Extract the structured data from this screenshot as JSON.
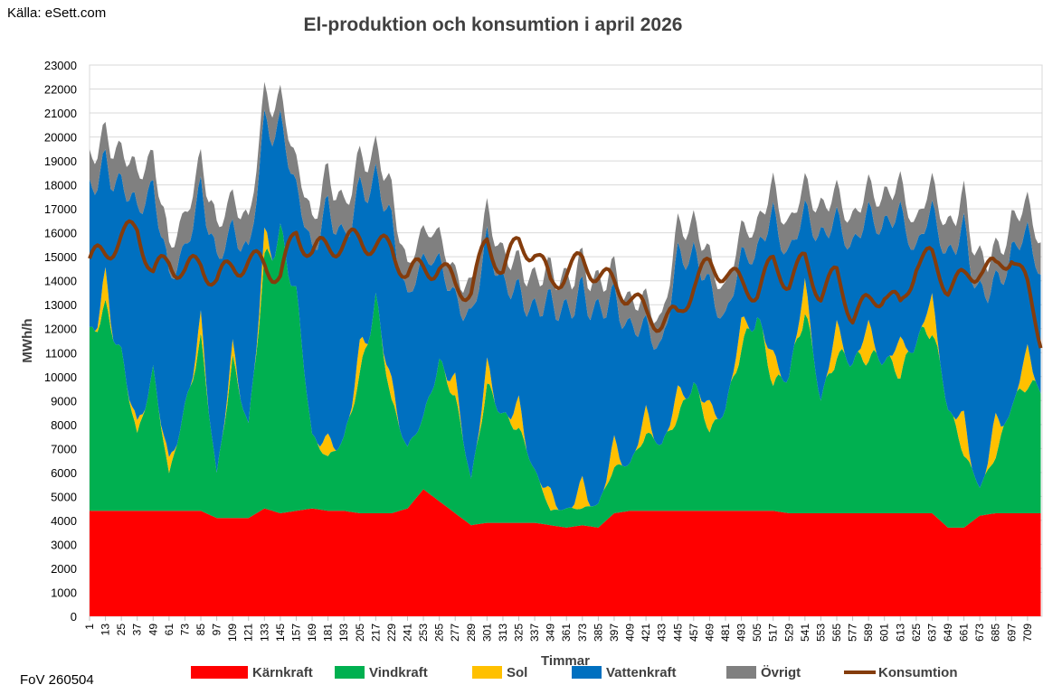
{
  "source_label": "Källa: eSett.com",
  "footer_label": "FoV 260504",
  "chart_data": {
    "type": "area",
    "title": "El-produktion och konsumtion i april 2026",
    "xlabel": "Timmar",
    "ylabel": "MWh/h",
    "ylim": [
      0,
      23000
    ],
    "y_ticks": [
      0,
      1000,
      2000,
      3000,
      4000,
      5000,
      6000,
      7000,
      8000,
      9000,
      10000,
      11000,
      12000,
      13000,
      14000,
      15000,
      16000,
      17000,
      18000,
      19000,
      20000,
      21000,
      22000,
      23000
    ],
    "x_range": [
      1,
      720
    ],
    "x_ticks": [
      1,
      13,
      25,
      37,
      49,
      61,
      73,
      85,
      97,
      109,
      121,
      133,
      145,
      157,
      169,
      181,
      193,
      205,
      217,
      229,
      241,
      253,
      265,
      277,
      289,
      301,
      313,
      325,
      337,
      349,
      361,
      373,
      385,
      397,
      409,
      421,
      433,
      445,
      457,
      469,
      481,
      493,
      505,
      517,
      529,
      541,
      553,
      565,
      577,
      589,
      601,
      613,
      625,
      637,
      649,
      661,
      673,
      685,
      697,
      709
    ],
    "grid": "horizontal",
    "legend_position": "bottom",
    "x": [
      1,
      13,
      25,
      37,
      49,
      61,
      73,
      85,
      97,
      109,
      121,
      133,
      145,
      157,
      169,
      181,
      193,
      205,
      217,
      229,
      241,
      253,
      265,
      277,
      289,
      301,
      313,
      325,
      337,
      349,
      361,
      373,
      385,
      397,
      409,
      421,
      433,
      445,
      457,
      469,
      481,
      493,
      505,
      517,
      529,
      541,
      553,
      565,
      577,
      589,
      601,
      613,
      625,
      637,
      649,
      661,
      673,
      685,
      697,
      709,
      720
    ],
    "series": [
      {
        "name": "Kärnkraft",
        "type": "area",
        "color": "#FF0000",
        "values": [
          4400,
          4400,
          4400,
          4400,
          4400,
          4400,
          4400,
          4400,
          4100,
          4100,
          4100,
          4500,
          4300,
          4400,
          4500,
          4400,
          4400,
          4300,
          4300,
          4300,
          4500,
          5300,
          4800,
          4300,
          3800,
          3900,
          3900,
          3900,
          3900,
          3800,
          3700,
          3800,
          3700,
          4300,
          4400,
          4400,
          4400,
          4400,
          4400,
          4400,
          4400,
          4400,
          4400,
          4400,
          4300,
          4300,
          4300,
          4300,
          4300,
          4300,
          4300,
          4300,
          4300,
          4300,
          3700,
          3700,
          4200,
          4300,
          4300,
          4300,
          4300
        ]
      },
      {
        "name": "Vindkraft",
        "type": "area",
        "color": "#00B050",
        "values": [
          7300,
          8400,
          6500,
          3100,
          5800,
          1500,
          4300,
          7100,
          1800,
          6500,
          3800,
          10200,
          11600,
          9000,
          3000,
          2200,
          3000,
          5700,
          8900,
          4600,
          2500,
          3000,
          5800,
          4800,
          1900,
          5700,
          4500,
          3900,
          2200,
          600,
          800,
          700,
          1000,
          1900,
          2000,
          3200,
          2800,
          3900,
          5400,
          3300,
          4300,
          6800,
          8200,
          5300,
          5800,
          8500,
          4800,
          6600,
          6400,
          6500,
          6500,
          5800,
          7300,
          7700,
          5100,
          3100,
          1200,
          2400,
          4600,
          5400,
          5200
        ]
      },
      {
        "name": "Sol",
        "type": "area",
        "color": "#FFC000",
        "values": [
          0,
          1000,
          0,
          400,
          0,
          500,
          0,
          700,
          0,
          500,
          0,
          800,
          0,
          0,
          0,
          700,
          0,
          1000,
          0,
          700,
          0,
          0,
          0,
          700,
          0,
          800,
          0,
          1000,
          0,
          700,
          0,
          1000,
          0,
          1000,
          0,
          900,
          0,
          1000,
          0,
          1000,
          0,
          1000,
          0,
          1100,
          0,
          1100,
          0,
          1200,
          0,
          1300,
          0,
          1300,
          0,
          1300,
          0,
          1400,
          0,
          1400,
          0,
          1400,
          0
        ]
      },
      {
        "name": "Vattenkraft",
        "type": "area",
        "color": "#0070C0",
        "values": [
          6300,
          5000,
          7300,
          9100,
          7800,
          7800,
          6700,
          5600,
          9200,
          5000,
          7400,
          4900,
          4700,
          4400,
          7800,
          9800,
          8500,
          6700,
          5300,
          6800,
          6300,
          6600,
          4300,
          3400,
          6900,
          5300,
          5700,
          4700,
          6900,
          8000,
          8400,
          8000,
          8200,
          6100,
          5800,
          3600,
          4200,
          5700,
          5600,
          5000,
          3900,
          2800,
          2900,
          5900,
          5200,
          3100,
          6900,
          4500,
          5000,
          4700,
          5800,
          5400,
          4000,
          3700,
          6500,
          7900,
          8300,
          5700,
          6600,
          4900,
          5000
        ]
      },
      {
        "name": "Övrigt",
        "type": "area",
        "color": "#808080",
        "values": [
          1300,
          1200,
          1400,
          1500,
          1300,
          1300,
          1400,
          1200,
          1400,
          1300,
          1300,
          1200,
          1100,
          1100,
          1300,
          1400,
          1400,
          1300,
          1200,
          1300,
          1300,
          1200,
          1100,
          1000,
          1300,
          1200,
          1200,
          1200,
          1300,
          1300,
          1300,
          1200,
          1200,
          1100,
          1100,
          1100,
          1100,
          1200,
          1300,
          1200,
          1200,
          1100,
          1100,
          1200,
          1200,
          1100,
          1200,
          1100,
          1100,
          1100,
          1200,
          1200,
          1100,
          1100,
          1200,
          1300,
          1400,
          1300,
          1300,
          1200,
          1300
        ]
      },
      {
        "name": "Konsumtion",
        "type": "line",
        "color": "#843C0C",
        "values": [
          14800,
          15200,
          15800,
          16200,
          14300,
          14800,
          14400,
          14700,
          14000,
          14600,
          14800,
          14700,
          14200,
          16000,
          15200,
          15400,
          15600,
          15700,
          15500,
          15300,
          14300,
          14500,
          14600,
          13800,
          13600,
          15600,
          14500,
          15600,
          15200,
          13900,
          14400,
          14800,
          14300,
          13800,
          13400,
          12600,
          12300,
          12500,
          13900,
          14600,
          14400,
          13800,
          13600,
          14700,
          14000,
          14800,
          13500,
          14200,
          12600,
          13000,
          13600,
          12800,
          14800,
          14900,
          13800,
          14000,
          14600,
          14400,
          15200,
          13600,
          11500
        ]
      }
    ]
  }
}
